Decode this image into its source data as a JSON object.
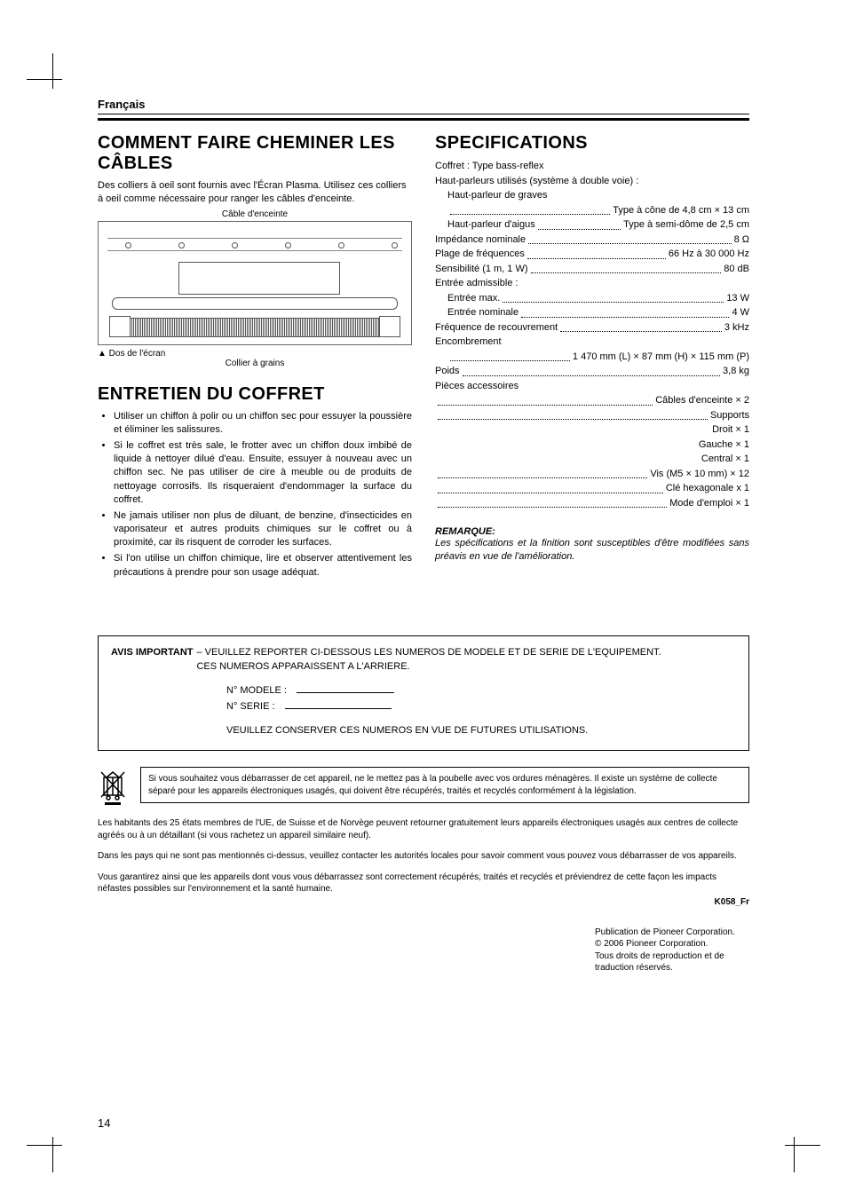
{
  "language_header": "Français",
  "page_number": "14",
  "left": {
    "h1": "COMMENT FAIRE CHEMINER LES CÂBLES",
    "intro": "Des colliers à oeil sont fournis avec l'Écran Plasma. Utilisez ces colliers à oeil comme nécessaire pour ranger les câbles d'enceinte.",
    "diagram_top_label": "Câble d'enceinte",
    "diagram_back_label": "▲ Dos de l'écran",
    "diagram_clamp_label": "Collier à grains",
    "h2": "ENTRETIEN DU COFFRET",
    "bullets": [
      "Utiliser un chiffon à polir ou un chiffon sec pour essuyer la poussière et éliminer les salissures.",
      "Si le coffret est très sale, le frotter avec un chiffon doux imbibé de liquide à nettoyer dilué d'eau. Ensuite, essuyer à nouveau avec un chiffon sec. Ne pas utiliser de cire à meuble ou de produits de nettoyage corrosifs. Ils risqueraient d'endommager la surface du coffret.",
      "Ne jamais utiliser non plus de diluant, de benzine, d'insecticides en vaporisateur et autres produits chimiques sur le coffret ou à proximité, car ils risquent de corroder les surfaces.",
      "Si l'on utilise un chiffon chimique, lire et observer attentivement les précautions à prendre pour son usage adéquat."
    ]
  },
  "right": {
    "h1": "SPECIFICATIONS",
    "lines": [
      {
        "kind": "plain",
        "text": "Coffret :  Type bass-reflex"
      },
      {
        "kind": "plain",
        "text": "Haut-parleurs utilisés (système à double voie) :"
      },
      {
        "kind": "plain",
        "indent": true,
        "text": "Haut-parleur de graves"
      },
      {
        "kind": "dots",
        "indent": true,
        "label": "",
        "value": "Type à cône de 4,8 cm × 13 cm"
      },
      {
        "kind": "dots",
        "indent": true,
        "label": "Haut-parleur d'aigus",
        "value": "Type à semi-dôme de 2,5 cm"
      },
      {
        "kind": "dots",
        "label": "Impédance nominale",
        "value": "8 Ω"
      },
      {
        "kind": "dots",
        "label": "Plage de fréquences",
        "value": "66 Hz à 30 000 Hz"
      },
      {
        "kind": "dots",
        "label": "Sensibilité (1 m, 1 W)",
        "value": "80 dB"
      },
      {
        "kind": "plain",
        "text": "Entrée admissible :"
      },
      {
        "kind": "dots",
        "indent": true,
        "label": "Entrée max.",
        "value": "13 W"
      },
      {
        "kind": "dots",
        "indent": true,
        "label": "Entrée nominale",
        "value": "4 W"
      },
      {
        "kind": "dots",
        "label": "Fréquence de recouvrement",
        "value": "3 kHz"
      },
      {
        "kind": "plain",
        "text": "Encombrement"
      },
      {
        "kind": "dots",
        "indent": true,
        "label": "",
        "value": "1 470 mm (L) × 87 mm (H) × 115 mm (P)"
      },
      {
        "kind": "dots",
        "label": "Poids",
        "value": "3,8 kg"
      },
      {
        "kind": "plain",
        "text": "Pièces accessoires"
      },
      {
        "kind": "dots",
        "label": "",
        "value": "Câbles d'enceinte × 2"
      },
      {
        "kind": "dots",
        "label": "",
        "value": "Supports"
      },
      {
        "kind": "right",
        "value": "Droit × 1"
      },
      {
        "kind": "right",
        "value": "Gauche × 1"
      },
      {
        "kind": "right",
        "value": "Central × 1"
      },
      {
        "kind": "dots",
        "label": "",
        "value": "Vis (M5 × 10 mm) × 12"
      },
      {
        "kind": "dots",
        "label": "",
        "value": "Clé hexagonale x 1"
      },
      {
        "kind": "dots",
        "label": "",
        "value": "Mode d'emploi × 1"
      }
    ],
    "remarque_head": "REMARQUE:",
    "remarque_body": "Les spécifications et la finition sont susceptibles d'être modifiées sans préavis en vue de l'amélioration."
  },
  "notice": {
    "lead": "AVIS IMPORTANT",
    "line1": " – VEUILLEZ REPORTER CI-DESSOUS LES NUMEROS DE MODELE ET DE SERIE DE L'EQUIPEMENT.",
    "line2": "CES NUMEROS APPARAISSENT A L'ARRIERE.",
    "field_model": "N° MODELE :",
    "field_serial": "N° SERIE :",
    "keep": "VEUILLEZ CONSERVER CES NUMEROS EN VUE DE FUTURES UTILISATIONS."
  },
  "weee_box": "Si vous souhaitez vous débarrasser de cet appareil, ne le mettez pas à la poubelle avec vos ordures ménagères. Il existe un système de collecte séparé pour les appareils électroniques usagés, qui doivent être récupérés, traités et recyclés conformément à la législation.",
  "fine1": "Les habitants des 25 états membres de l'UE, de Suisse et de Norvège peuvent retourner gratuitement leurs appareils électroniques usagés aux centres de collecte agréés ou à un détaillant (si vous rachetez un appareil similaire neuf).",
  "fine2": "Dans les pays qui ne sont pas mentionnés ci-dessus, veuillez contacter les autorités locales pour savoir comment vous pouvez vous débarrasser de vos appareils.",
  "fine3": "Vous garantirez ainsi que les appareils dont vous vous débarrassez sont correctement récupérés, traités et recyclés et préviendrez de cette façon les impacts néfastes possibles sur l'environnement et la santé humaine.",
  "k058": "K058_Fr",
  "pub": "Publication de Pioneer Corporation.\n© 2006 Pioneer Corporation.\nTous droits de reproduction et de\ntraduction réservés."
}
